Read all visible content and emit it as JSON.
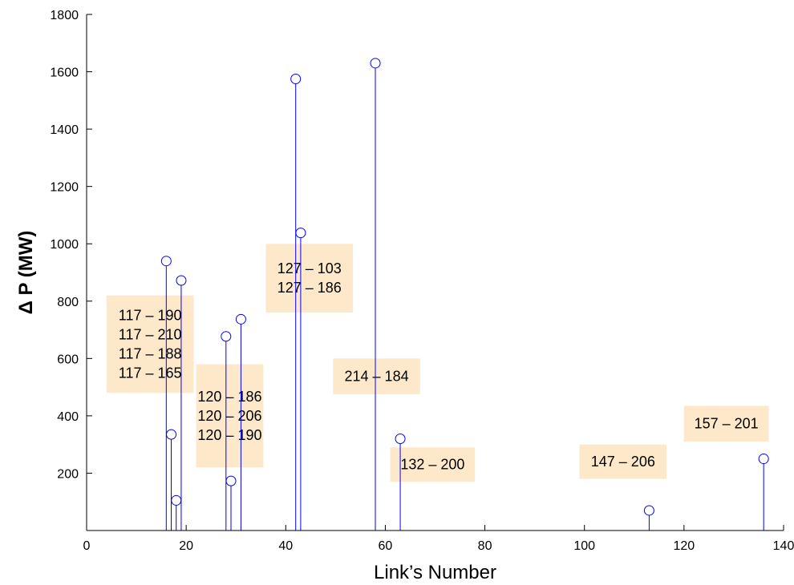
{
  "chart_data": {
    "type": "stem",
    "xlabel": "Link’s Number",
    "ylabel": "Δ P (MW)",
    "xlim": [
      0,
      140
    ],
    "ylim": [
      0,
      1800
    ],
    "xticks": [
      "0",
      "20",
      "40",
      "60",
      "80",
      "100",
      "120",
      "140"
    ],
    "yticks": [
      "200",
      "400",
      "600",
      "800",
      "1000",
      "1200",
      "1400",
      "1600",
      "1800"
    ],
    "grid": false,
    "series_color": "#0000ff",
    "annotation_bg": "#fde9c9",
    "points": [
      {
        "x": 16,
        "y": 940
      },
      {
        "x": 17,
        "y": 335
      },
      {
        "x": 18,
        "y": 105
      },
      {
        "x": 19,
        "y": 872
      },
      {
        "x": 28,
        "y": 677
      },
      {
        "x": 29,
        "y": 173
      },
      {
        "x": 31,
        "y": 737
      },
      {
        "x": 42,
        "y": 1575
      },
      {
        "x": 43,
        "y": 1038
      },
      {
        "x": 58,
        "y": 1630
      },
      {
        "x": 63,
        "y": 320
      },
      {
        "x": 113,
        "y": 70
      },
      {
        "x": 136,
        "y": 250
      }
    ],
    "annotations": [
      {
        "x0": 4,
        "x1": 21.5,
        "y_top": 820,
        "y_bottom": 480,
        "lines": [
          "117 – 190",
          "117 – 210",
          "117 – 188",
          "117 – 165"
        ]
      },
      {
        "x0": 22,
        "x1": 35.5,
        "y_top": 580,
        "y_bottom": 220,
        "lines": [
          "120 – 186",
          "120 – 206",
          "120 – 190"
        ]
      },
      {
        "x0": 36,
        "x1": 53.5,
        "y_top": 1000,
        "y_bottom": 760,
        "lines": [
          "127 – 103",
          "127 – 186"
        ]
      },
      {
        "x0": 49.5,
        "x1": 67,
        "y_top": 600,
        "y_bottom": 475,
        "lines": [
          "214 – 184"
        ]
      },
      {
        "x0": 61,
        "x1": 78,
        "y_top": 290,
        "y_bottom": 170,
        "lines": [
          "132 – 200"
        ]
      },
      {
        "x0": 99,
        "x1": 116.5,
        "y_top": 300,
        "y_bottom": 180,
        "lines": [
          "147 – 206"
        ]
      },
      {
        "x0": 120,
        "x1": 137,
        "y_top": 435,
        "y_bottom": 310,
        "lines": [
          "157 – 201"
        ]
      }
    ]
  }
}
